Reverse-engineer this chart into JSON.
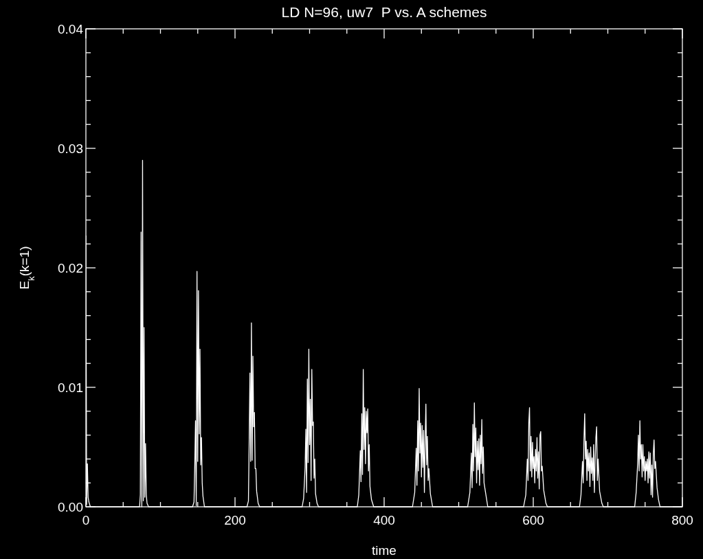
{
  "chart_data": {
    "type": "line",
    "title": "LD N=96, uw7  P vs. A schemes",
    "xlabel": "time",
    "ylabel": "E$_{k}$(k=1)",
    "color": "#ffffff",
    "line_style": "solid",
    "grid": false,
    "xlim": [
      0,
      800
    ],
    "ylim": [
      0,
      0.04
    ],
    "xticks": [
      0,
      {
        "value": 50,
        "label": null
      },
      {
        "value": 100,
        "label": null
      },
      {
        "value": 150,
        "label": null
      },
      200,
      {
        "value": 250,
        "label": null
      },
      {
        "value": 300,
        "label": null
      },
      {
        "value": 350,
        "label": null
      },
      400,
      {
        "value": 450,
        "label": null
      },
      {
        "value": 500,
        "label": null
      },
      {
        "value": 550,
        "label": null
      },
      600,
      {
        "value": 650,
        "label": null
      },
      {
        "value": 700,
        "label": null
      },
      {
        "value": 750,
        "label": null
      },
      800
    ],
    "yticks": [
      {
        "value": 0,
        "label": "0.00"
      },
      {
        "value": 0.002,
        "label": null
      },
      {
        "value": 0.004,
        "label": null
      },
      {
        "value": 0.006,
        "label": null
      },
      {
        "value": 0.008,
        "label": null
      },
      {
        "value": 0.01,
        "label": "0.01"
      },
      {
        "value": 0.012,
        "label": null
      },
      {
        "value": 0.014,
        "label": null
      },
      {
        "value": 0.016,
        "label": null
      },
      {
        "value": 0.018,
        "label": null
      },
      {
        "value": 0.02,
        "label": "0.02"
      },
      {
        "value": 0.022,
        "label": null
      },
      {
        "value": 0.024,
        "label": null
      },
      {
        "value": 0.026,
        "label": null
      },
      {
        "value": 0.028,
        "label": null
      },
      {
        "value": 0.03,
        "label": "0.03"
      },
      {
        "value": 0.032,
        "label": null
      },
      {
        "value": 0.034,
        "label": null
      },
      {
        "value": 0.036,
        "label": null
      },
      {
        "value": 0.038,
        "label": null
      },
      {
        "value": 0.04,
        "label": "0.04"
      }
    ],
    "x": [
      0,
      1,
      2,
      3,
      4,
      6,
      72,
      73,
      74,
      75,
      76,
      77,
      78,
      79,
      80,
      81,
      82,
      84,
      143,
      145,
      146,
      147,
      148,
      149,
      150,
      151,
      152,
      153,
      154,
      155,
      156,
      157,
      159,
      216,
      218,
      219,
      220,
      221,
      222,
      223,
      224,
      225,
      226,
      227,
      228,
      229,
      231,
      233,
      290,
      292,
      294,
      295,
      296,
      297,
      298,
      299,
      300,
      301,
      302,
      303,
      304,
      305,
      306,
      307,
      308,
      310,
      312,
      364,
      366,
      368,
      369,
      370,
      371,
      372,
      373,
      374,
      375,
      376,
      377,
      378,
      379,
      380,
      381,
      383,
      386,
      438,
      441,
      443,
      444,
      445,
      446,
      447,
      448,
      449,
      450,
      451,
      452,
      453,
      454,
      455,
      456,
      457,
      458,
      459,
      460,
      462,
      465,
      512,
      515,
      517,
      518,
      519,
      520,
      521,
      522,
      523,
      524,
      525,
      526,
      527,
      528,
      529,
      530,
      531,
      532,
      533,
      534,
      536,
      539,
      587,
      590,
      592,
      593,
      594,
      595,
      596,
      597,
      598,
      599,
      600,
      601,
      602,
      603,
      604,
      605,
      606,
      607,
      608,
      609,
      610,
      611,
      612,
      614,
      617,
      619,
      662,
      664,
      666,
      667,
      668,
      669,
      670,
      671,
      672,
      673,
      674,
      675,
      676,
      677,
      678,
      679,
      680,
      681,
      682,
      683,
      684,
      685,
      686,
      687,
      689,
      692,
      694,
      736,
      738,
      740,
      741,
      742,
      743,
      744,
      745,
      746,
      747,
      748,
      749,
      750,
      751,
      752,
      753,
      754,
      755,
      756,
      757,
      758,
      759,
      760,
      761,
      762,
      763,
      764,
      766,
      768,
      770,
      800
    ],
    "values": [
      0.0227,
      0.0002,
      0.0036,
      0.0008,
      0.0004,
      0,
      0,
      0.001,
      0.023,
      0,
      0.029,
      0.0005,
      0.015,
      0.0008,
      0.0053,
      0.001,
      0.0003,
      0,
      0,
      0.0004,
      0.0035,
      0.0072,
      0.0001,
      0.0197,
      0.0038,
      0.0181,
      0.0061,
      0.0132,
      0.0035,
      0.0058,
      0.002,
      0.0009,
      0,
      0,
      0.0005,
      0.0055,
      0.0112,
      0.0038,
      0.0154,
      0.0039,
      0.0126,
      0.0067,
      0.0079,
      0.0032,
      0.0032,
      0.0013,
      0.0003,
      0,
      0,
      0.0007,
      0.0033,
      0.0065,
      0.0012,
      0.0107,
      0.0037,
      0.0132,
      0.0052,
      0.009,
      0.0022,
      0.0115,
      0.0068,
      0.0071,
      0.0024,
      0.004,
      0.0011,
      0.0003,
      0,
      0,
      0.001,
      0.0047,
      0.0021,
      0.0078,
      0.0027,
      0.0115,
      0.0048,
      0.0083,
      0.0036,
      0.008,
      0.0062,
      0.0082,
      0.003,
      0.0052,
      0.0017,
      0.0006,
      0,
      0,
      0.0012,
      0.0049,
      0.0018,
      0.0072,
      0.003,
      0.0099,
      0.0045,
      0.007,
      0.0025,
      0.0068,
      0.0033,
      0.0064,
      0.0012,
      0.0054,
      0.0086,
      0.0035,
      0.0059,
      0.0022,
      0.0032,
      0.0011,
      0,
      0,
      0.0012,
      0.0045,
      0.0016,
      0.0069,
      0.003,
      0.0087,
      0.0042,
      0.0066,
      0.002,
      0.0055,
      0.0031,
      0.0057,
      0.0018,
      0.006,
      0.0036,
      0.0073,
      0.0028,
      0.005,
      0.002,
      0.0012,
      0,
      0,
      0.001,
      0.004,
      0.0022,
      0.007,
      0.0083,
      0.003,
      0.0059,
      0.0025,
      0.0054,
      0.0032,
      0.0042,
      0.002,
      0.0048,
      0.003,
      0.0058,
      0.0024,
      0.0046,
      0.0015,
      0.006,
      0.0063,
      0.003,
      0.0034,
      0.0014,
      0.0003,
      0,
      0,
      0.001,
      0.0038,
      0.002,
      0.0056,
      0.0078,
      0.004,
      0.0055,
      0.0022,
      0.0048,
      0.003,
      0.0045,
      0.0017,
      0.005,
      0.0028,
      0.0041,
      0.0022,
      0.0052,
      0.0012,
      0.0038,
      0.0058,
      0.0067,
      0.0022,
      0.004,
      0.0013,
      0.0003,
      0,
      0,
      0.0012,
      0.0036,
      0.006,
      0.003,
      0.0072,
      0.004,
      0.0052,
      0.0025,
      0.0052,
      0.003,
      0.0042,
      0.0022,
      0.0038,
      0.003,
      0.004,
      0.002,
      0.0046,
      0.0024,
      0.0045,
      0.001,
      0.0035,
      0.0008,
      0.0044,
      0.0056,
      0.0032,
      0.0038,
      0.0016,
      0.0006,
      0,
      0
    ]
  }
}
